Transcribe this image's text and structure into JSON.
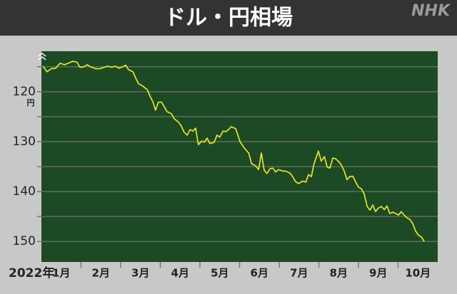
{
  "chart_data": {
    "type": "line",
    "title": "ドル・円相場",
    "brand": "NHK",
    "unit": "円",
    "year": "2022年",
    "categories": [
      "1月",
      "2月",
      "3月",
      "4月",
      "5月",
      "6月",
      "7月",
      "8月",
      "9月",
      "10月"
    ],
    "xlim": [
      1,
      11
    ],
    "ylim": [
      154.1,
      111.9
    ],
    "yticks": [
      120,
      130,
      140,
      150
    ],
    "grid_values": [
      115,
      120,
      125,
      130,
      135,
      140,
      145,
      150
    ],
    "series": [
      {
        "name": "ドル・円",
        "color": "#f5f000",
        "x": [
          1.04,
          1.14,
          1.25,
          1.36,
          1.47,
          1.58,
          1.68,
          1.79,
          1.9,
          1.97,
          2.08,
          2.15,
          2.26,
          2.37,
          2.48,
          2.59,
          2.66,
          2.77,
          2.87,
          2.95,
          3.05,
          3.13,
          3.2,
          3.31,
          3.38,
          3.45,
          3.56,
          3.67,
          3.74,
          3.81,
          3.88,
          3.95,
          4.03,
          4.1,
          4.17,
          4.28,
          4.35,
          4.46,
          4.53,
          4.6,
          4.68,
          4.75,
          4.82,
          4.89,
          4.96,
          5.04,
          5.11,
          5.18,
          5.25,
          5.36,
          5.43,
          5.5,
          5.58,
          5.65,
          5.72,
          5.79,
          5.9,
          6.01,
          6.12,
          6.23,
          6.3,
          6.41,
          6.48,
          6.55,
          6.62,
          6.69,
          6.77,
          6.84,
          6.91,
          6.98,
          7.09,
          7.16,
          7.27,
          7.34,
          7.41,
          7.49,
          7.59,
          7.67,
          7.74,
          7.81,
          7.88,
          7.99,
          8.06,
          8.14,
          8.21,
          8.28,
          8.35,
          8.42,
          8.5,
          8.57,
          8.64,
          8.71,
          8.78,
          8.86,
          8.93,
          9.0,
          9.07,
          9.14,
          9.22,
          9.29,
          9.36,
          9.43,
          9.5,
          9.58,
          9.65,
          9.72,
          9.79,
          9.86,
          9.94,
          10.01,
          10.08,
          10.15,
          10.23,
          10.3,
          10.37,
          10.44,
          10.51,
          10.59,
          10.66
        ],
        "values": [
          114.9,
          116.0,
          115.4,
          115.3,
          114.3,
          114.6,
          114.3,
          113.9,
          114.1,
          115.1,
          115.0,
          114.6,
          115.1,
          115.4,
          115.4,
          115.1,
          114.9,
          115.1,
          114.9,
          115.3,
          115.0,
          114.7,
          115.6,
          116.0,
          117.3,
          118.4,
          118.9,
          119.6,
          120.9,
          122.0,
          123.7,
          122.1,
          122.1,
          123.0,
          124.0,
          124.4,
          125.4,
          126.1,
          126.9,
          128.1,
          128.7,
          127.6,
          127.9,
          127.3,
          130.6,
          129.9,
          130.1,
          129.3,
          130.4,
          130.1,
          128.7,
          129.1,
          127.9,
          128.0,
          127.6,
          127.0,
          127.4,
          130.0,
          131.3,
          132.3,
          134.4,
          134.9,
          135.6,
          132.3,
          135.7,
          136.4,
          135.4,
          135.3,
          136.1,
          135.6,
          135.9,
          135.9,
          136.3,
          137.0,
          138.0,
          138.4,
          137.9,
          138.1,
          136.6,
          137.0,
          134.4,
          131.9,
          133.9,
          133.0,
          135.1,
          135.3,
          133.3,
          133.4,
          134.0,
          134.7,
          135.9,
          137.6,
          137.0,
          136.9,
          138.1,
          139.1,
          139.4,
          140.4,
          143.0,
          143.7,
          142.7,
          144.0,
          143.3,
          143.0,
          143.6,
          142.9,
          144.4,
          144.1,
          144.4,
          144.7,
          144.0,
          144.7,
          145.3,
          145.6,
          146.4,
          147.9,
          148.7,
          149.1,
          150.0
        ]
      }
    ]
  }
}
